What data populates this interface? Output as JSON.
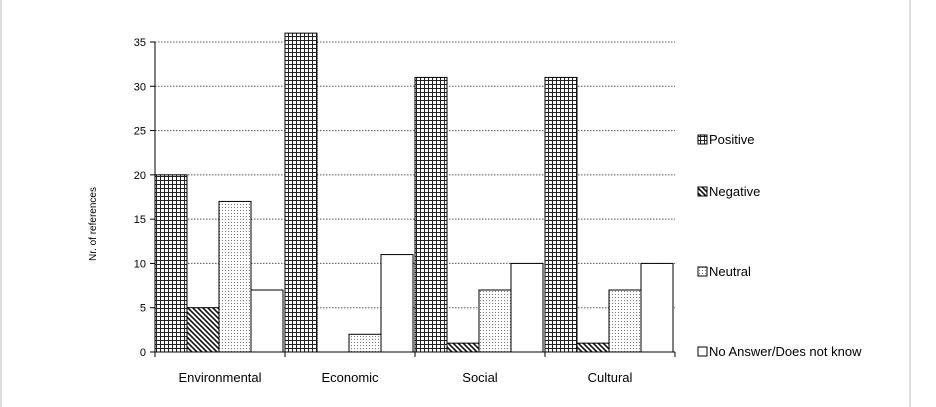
{
  "chart_data": {
    "type": "bar",
    "categories": [
      "Environmental",
      "Economic",
      "Social",
      "Cultural"
    ],
    "ylabel": "Nr. of references",
    "ylim": [
      0,
      35
    ],
    "yticks": [
      "0",
      "5",
      "10",
      "15",
      "20",
      "25",
      "30",
      "35"
    ],
    "grid": "horizontal dotted",
    "legend_position": "right",
    "series": [
      {
        "name": "Positive",
        "values": [
          20,
          36,
          31,
          31
        ],
        "pattern": "grid"
      },
      {
        "name": "Negative",
        "values": [
          5,
          0,
          1,
          1
        ],
        "pattern": "diagonal"
      },
      {
        "name": "Neutral",
        "values": [
          17,
          2,
          7,
          7
        ],
        "pattern": "dots"
      },
      {
        "name": "No Answer/Does not know",
        "values": [
          7,
          11,
          10,
          10
        ],
        "pattern": "blank"
      }
    ]
  }
}
